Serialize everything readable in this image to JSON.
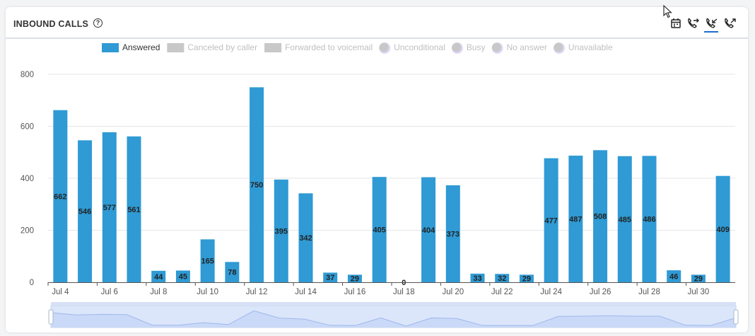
{
  "header": {
    "title": "INBOUND CALLS",
    "help_symbol": "?"
  },
  "toolbar": {
    "icons": [
      "calendar-icon",
      "phone-forward-icon",
      "phone-incoming-icon",
      "phone-outgoing-icon"
    ],
    "active": "phone-incoming-icon"
  },
  "colors": {
    "answered": "#2f9ad4",
    "off": "#c8c8c8",
    "grid": "#e6e6e6",
    "slider": "#dbe6fb",
    "slider_line": "#9fb7ea"
  },
  "legend": [
    {
      "label": "Answered",
      "shape": "rect",
      "active": true
    },
    {
      "label": "Canceled by caller",
      "shape": "rect",
      "active": false
    },
    {
      "label": "Forwarded to voicemail",
      "shape": "rect",
      "active": false
    },
    {
      "label": "Unconditional",
      "shape": "circle",
      "active": false
    },
    {
      "label": "Busy",
      "shape": "circle",
      "active": false
    },
    {
      "label": "No answer",
      "shape": "circle",
      "active": false
    },
    {
      "label": "Unavailable",
      "shape": "circle",
      "active": false
    }
  ],
  "chart_data": {
    "type": "bar",
    "title": "INBOUND CALLS",
    "categories": [
      "Jul 4",
      "Jul 5",
      "Jul 6",
      "Jul 7",
      "Jul 8",
      "Jul 9",
      "Jul 10",
      "Jul 11",
      "Jul 12",
      "Jul 13",
      "Jul 14",
      "Jul 15",
      "Jul 16",
      "Jul 17",
      "Jul 18",
      "Jul 19",
      "Jul 20",
      "Jul 21",
      "Jul 22",
      "Jul 23",
      "Jul 24",
      "Jul 25",
      "Jul 26",
      "Jul 27",
      "Jul 28",
      "Jul 29",
      "Jul 30",
      "Jul 31"
    ],
    "tick_labels": [
      "Jul 4",
      "Jul 6",
      "Jul 8",
      "Jul 10",
      "Jul 12",
      "Jul 14",
      "Jul 16",
      "Jul 18",
      "Jul 20",
      "Jul 22",
      "Jul 24",
      "Jul 26",
      "Jul 28",
      "Jul 30"
    ],
    "series": [
      {
        "name": "Answered",
        "values": [
          662,
          546,
          577,
          561,
          44,
          45,
          165,
          78,
          750,
          395,
          342,
          37,
          29,
          405,
          0,
          404,
          373,
          33,
          32,
          29,
          477,
          487,
          508,
          485,
          486,
          46,
          29,
          409
        ]
      }
    ],
    "yticks": [
      0,
      200,
      400,
      600,
      800
    ],
    "ylim": [
      0,
      800
    ],
    "grid": true,
    "legend_position": "top",
    "data_zoom": true
  }
}
